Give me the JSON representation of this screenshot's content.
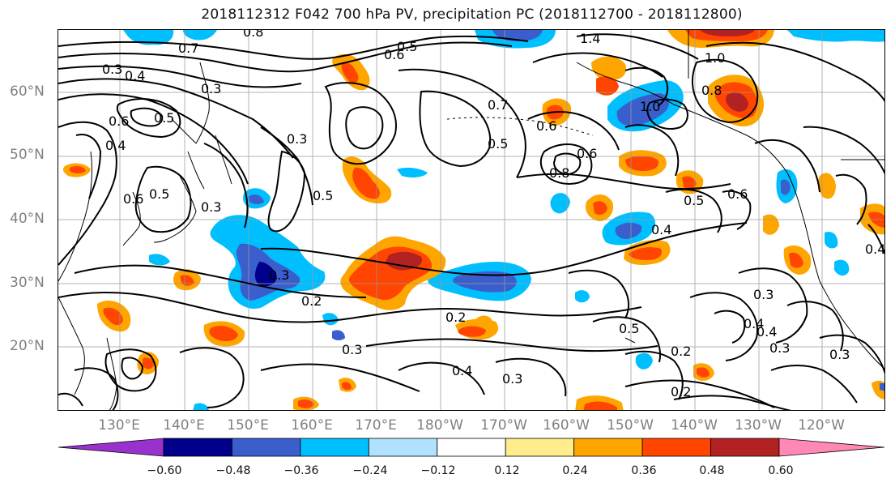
{
  "title": "2018112312 F042 700 hPa PV, precipitation PC (2018112700 - 2018112800)",
  "lat_labels": [
    "60°N",
    "50°N",
    "40°N",
    "30°N",
    "20°N"
  ],
  "lon_labels": [
    "130°E",
    "140°E",
    "150°E",
    "160°E",
    "170°E",
    "180°W",
    "170°W",
    "160°W",
    "150°W",
    "140°W",
    "130°W",
    "120°W"
  ],
  "contour_labels": [
    "0.8",
    "0.5",
    "0.7",
    "0.6",
    "1.4",
    "1.0",
    "0.3",
    "0.4",
    "0.8",
    "1.0",
    "0.6",
    "0.3",
    "0.4",
    "0.5",
    "0.3",
    "0.6",
    "0.5",
    "0.3",
    "0.6",
    "0.7",
    "0.8",
    "0.5",
    "0.6",
    "0.5",
    "0.4",
    "0.5",
    "0.3",
    "0.2",
    "0.3",
    "0.2",
    "0.4",
    "0.3",
    "0.5",
    "0.4",
    "0.3",
    "0.3",
    "0.2",
    "0.2",
    "0.3",
    "0.4",
    "0.6",
    "0.4"
  ],
  "colorbar": {
    "ticks": [
      "−0.60",
      "−0.48",
      "−0.36",
      "−0.24",
      "−0.12",
      "0.12",
      "0.24",
      "0.36",
      "0.48",
      "0.60"
    ],
    "colors": [
      "#9932cc",
      "#00008b",
      "#3a5fcd",
      "#00bfff",
      "#b0e2ff",
      "#ffffff",
      "#ffec8b",
      "#ffa500",
      "#ff4500",
      "#b22222",
      "#ff88b4"
    ]
  }
}
